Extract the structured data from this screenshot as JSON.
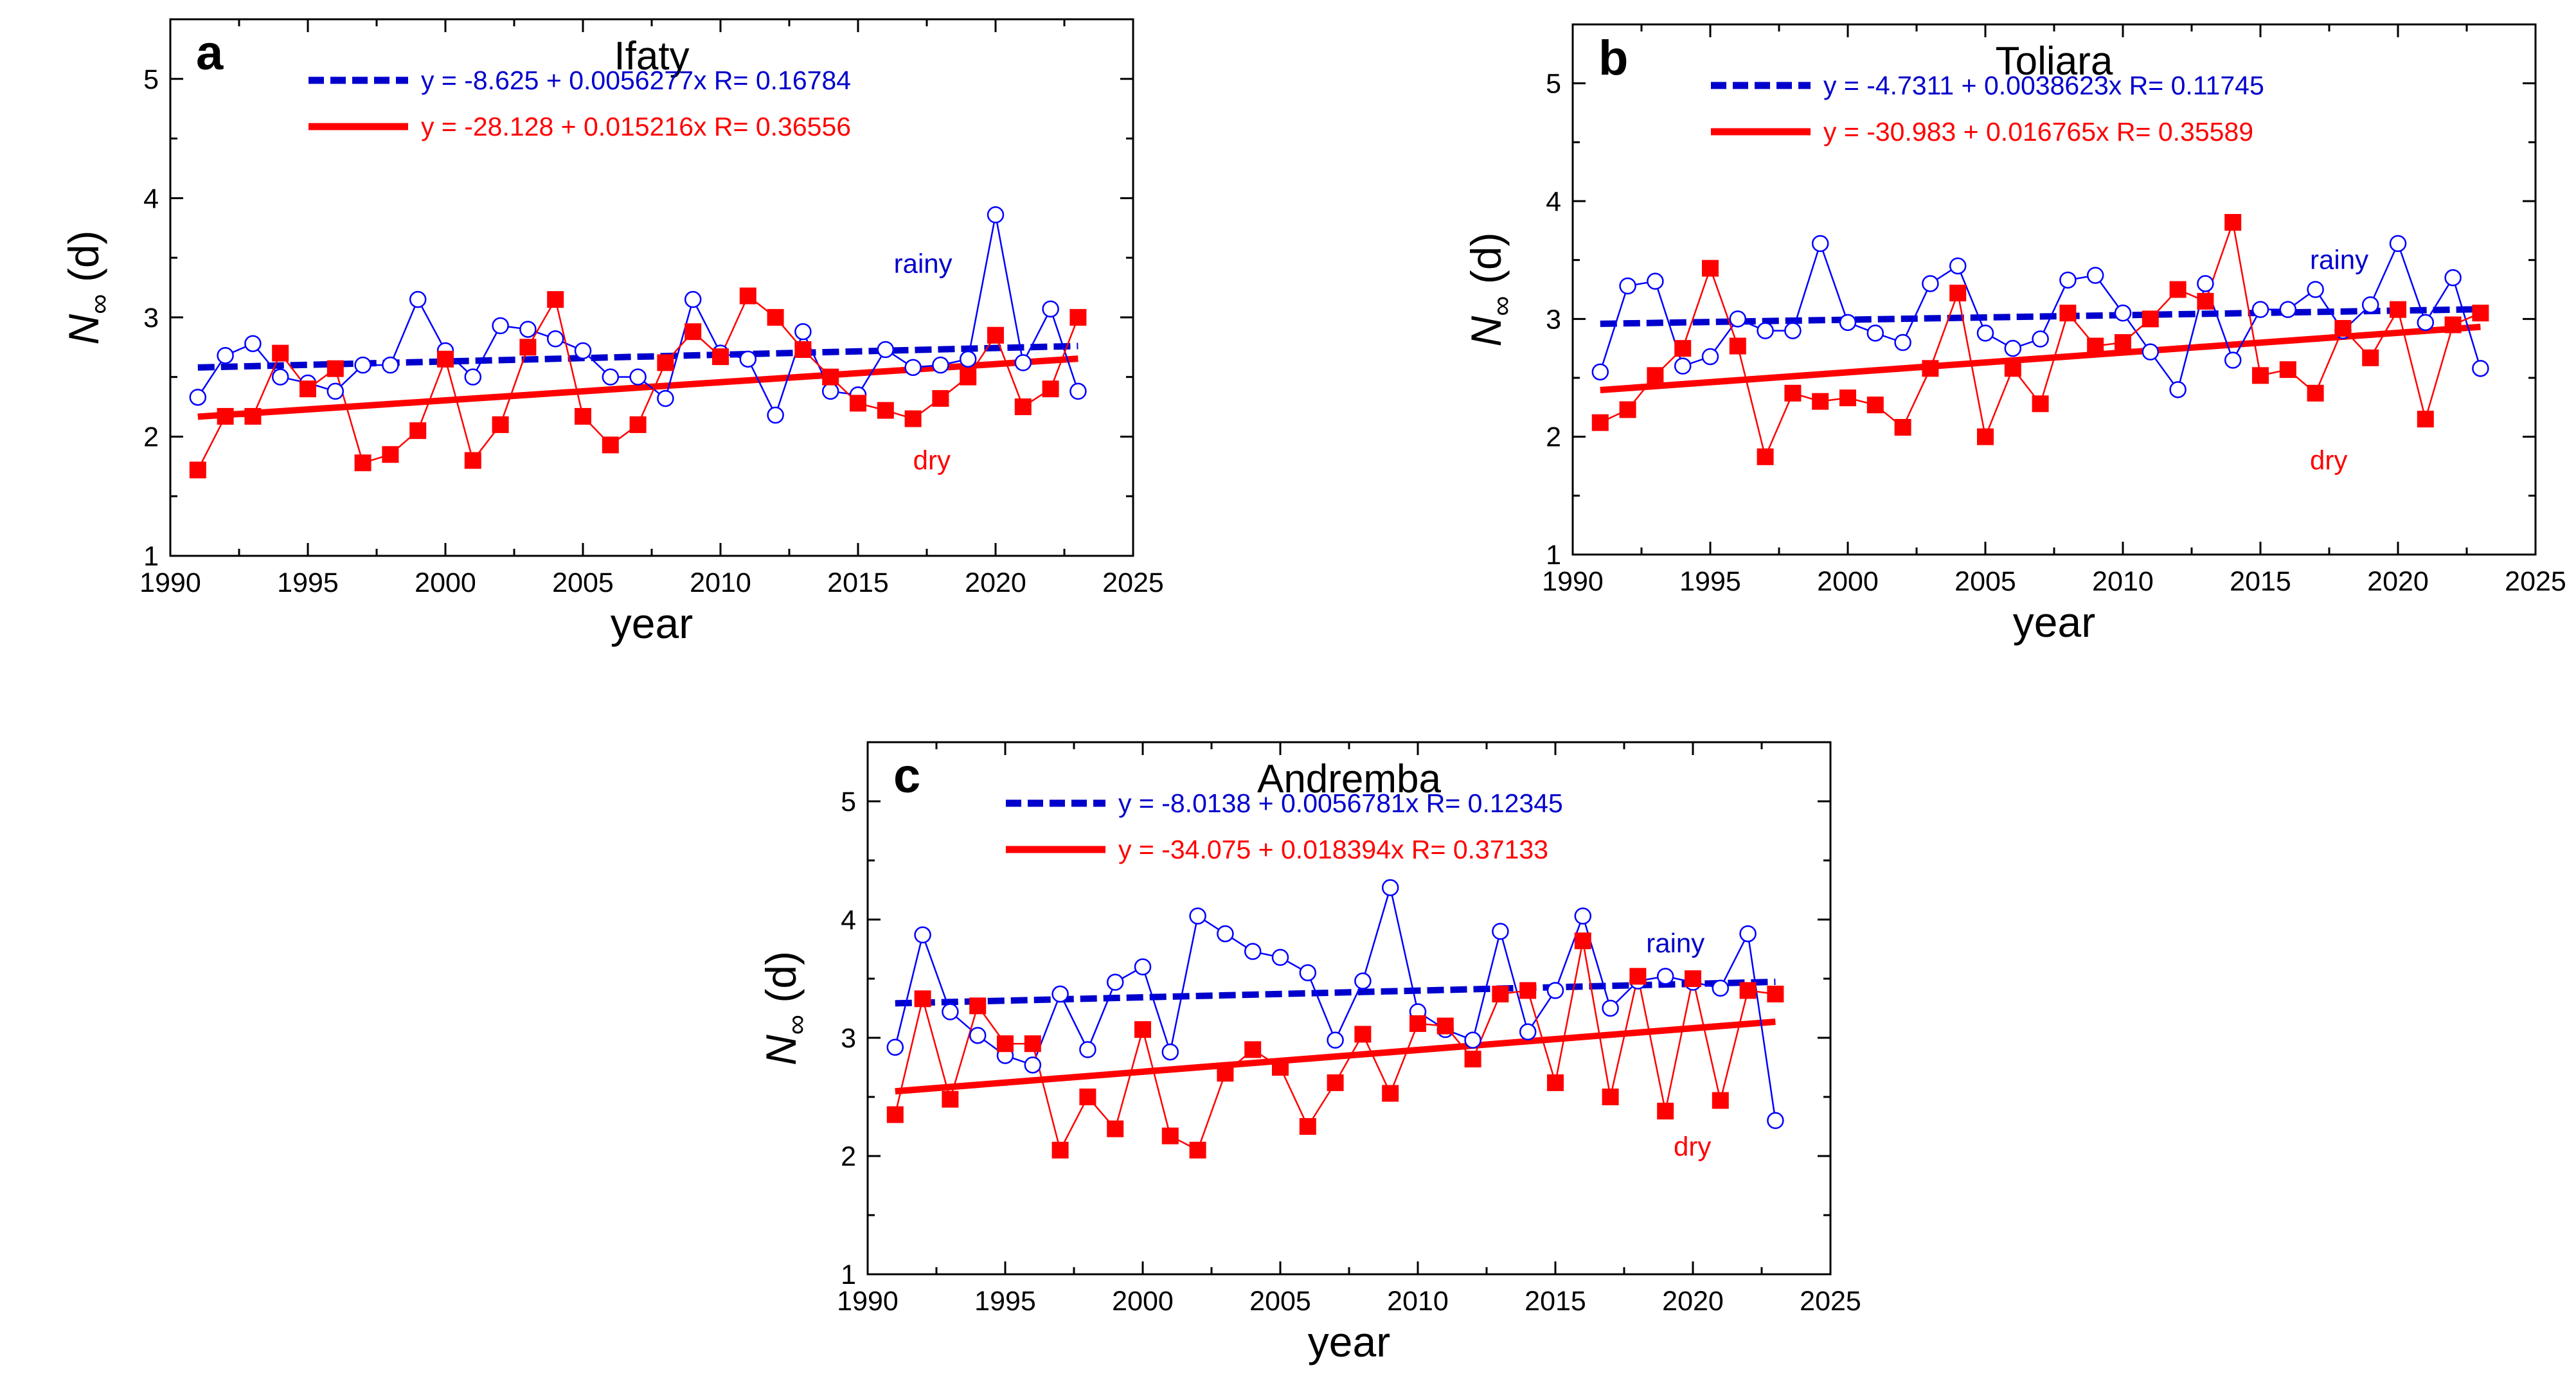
{
  "chart_data": [
    {
      "type": "line",
      "panel_label": "a",
      "title": "Ifaty",
      "xlabel": "year",
      "ylabel_main": "N",
      "ylabel_sub": "∞",
      "ylabel_unit": "(d)",
      "xlim": [
        1990,
        2025
      ],
      "ylim": [
        1,
        5.5
      ],
      "xticks": [
        1990,
        1995,
        2000,
        2005,
        2010,
        2015,
        2020,
        2025
      ],
      "yticks": [
        1,
        2,
        3,
        4,
        5
      ],
      "x": [
        1991,
        1992,
        1993,
        1994,
        1995,
        1996,
        1997,
        1998,
        1999,
        2000,
        2001,
        2002,
        2003,
        2004,
        2005,
        2006,
        2007,
        2008,
        2009,
        2010,
        2011,
        2012,
        2013,
        2014,
        2015,
        2016,
        2017,
        2018,
        2019,
        2020,
        2021,
        2022,
        2023
      ],
      "series": [
        {
          "name": "rainy",
          "color": "#0000ff",
          "marker": "open-circle",
          "values": [
            2.33,
            2.68,
            2.78,
            2.5,
            2.45,
            2.38,
            2.6,
            2.6,
            3.15,
            2.72,
            2.5,
            2.93,
            2.9,
            2.82,
            2.72,
            2.5,
            2.5,
            2.32,
            3.15,
            2.7,
            2.65,
            2.18,
            2.88,
            2.38,
            2.35,
            2.73,
            2.58,
            2.6,
            2.65,
            3.86,
            2.62,
            3.07,
            2.38
          ]
        },
        {
          "name": "dry",
          "color": "#ff0000",
          "marker": "filled-square",
          "values": [
            1.72,
            2.17,
            2.17,
            2.7,
            2.4,
            2.57,
            1.78,
            1.85,
            2.05,
            2.65,
            1.8,
            2.1,
            2.75,
            3.15,
            2.17,
            1.93,
            2.1,
            2.62,
            2.88,
            2.67,
            3.18,
            3.0,
            2.73,
            2.5,
            2.28,
            2.22,
            2.15,
            2.32,
            2.5,
            2.85,
            2.25,
            2.4,
            3.0
          ]
        }
      ],
      "fits": [
        {
          "name": "rainy fit",
          "color": "#0000cc",
          "style": "dashed",
          "intercept": -8.625,
          "slope": 0.0056277,
          "label": "y = -8.625 + 0.0056277x    R= 0.16784"
        },
        {
          "name": "dry fit",
          "color": "#ff0000",
          "style": "solid",
          "intercept": -28.128,
          "slope": 0.015216,
          "label": "y = -28.128 + 0.015216x    R= 0.36556"
        }
      ],
      "annotations": [
        {
          "text": "rainy",
          "color": "#0000cc",
          "x": 2016.3,
          "y": 3.45
        },
        {
          "text": "dry",
          "color": "#ff0000",
          "x": 2017.0,
          "y": 1.8
        }
      ]
    },
    {
      "type": "line",
      "panel_label": "b",
      "title": "Toliara",
      "xlabel": "year",
      "ylabel_main": "N",
      "ylabel_sub": "∞",
      "ylabel_unit": "(d)",
      "xlim": [
        1990,
        2025
      ],
      "ylim": [
        1,
        5.5
      ],
      "xticks": [
        1990,
        1995,
        2000,
        2005,
        2010,
        2015,
        2020,
        2025
      ],
      "yticks": [
        1,
        2,
        3,
        4,
        5
      ],
      "x": [
        1991,
        1992,
        1993,
        1994,
        1995,
        1996,
        1997,
        1998,
        1999,
        2000,
        2001,
        2002,
        2003,
        2004,
        2005,
        2006,
        2007,
        2008,
        2009,
        2010,
        2011,
        2012,
        2013,
        2014,
        2015,
        2016,
        2017,
        2018,
        2019,
        2020,
        2021,
        2022,
        2023
      ],
      "series": [
        {
          "name": "rainy",
          "color": "#0000ff",
          "marker": "open-circle",
          "values": [
            2.55,
            3.28,
            3.32,
            2.6,
            2.68,
            3.0,
            2.9,
            2.9,
            3.64,
            2.97,
            2.88,
            2.8,
            3.3,
            3.45,
            2.88,
            2.75,
            2.83,
            3.33,
            3.37,
            3.05,
            2.72,
            2.4,
            3.3,
            2.65,
            3.08,
            3.08,
            3.25,
            2.9,
            3.12,
            3.64,
            2.97,
            3.35,
            2.58
          ]
        },
        {
          "name": "dry",
          "color": "#ff0000",
          "marker": "filled-square",
          "values": [
            2.12,
            2.23,
            2.52,
            2.75,
            3.43,
            2.77,
            1.83,
            2.37,
            2.3,
            2.33,
            2.27,
            2.08,
            2.58,
            3.22,
            2.0,
            2.58,
            2.28,
            3.05,
            2.77,
            2.8,
            3.0,
            3.25,
            3.15,
            3.82,
            2.52,
            2.57,
            2.37,
            2.92,
            2.67,
            3.08,
            2.15,
            2.95,
            3.05
          ]
        }
      ],
      "fits": [
        {
          "name": "rainy fit",
          "color": "#0000cc",
          "style": "dashed",
          "intercept": -4.7311,
          "slope": 0.0038623,
          "label": "y = -4.7311 + 0.0038623x    R= 0.11745"
        },
        {
          "name": "dry fit",
          "color": "#ff0000",
          "style": "solid",
          "intercept": -30.983,
          "slope": 0.016765,
          "label": "y = -30.983 + 0.016765x    R= 0.35589"
        }
      ],
      "annotations": [
        {
          "text": "rainy",
          "color": "#0000cc",
          "x": 2016.8,
          "y": 3.5
        },
        {
          "text": "dry",
          "color": "#ff0000",
          "x": 2016.8,
          "y": 1.8
        }
      ]
    },
    {
      "type": "line",
      "panel_label": "c",
      "title": "Andremba",
      "xlabel": "year",
      "ylabel_main": "N",
      "ylabel_sub": "∞",
      "ylabel_unit": "(d)",
      "xlim": [
        1990,
        2025
      ],
      "ylim": [
        1,
        5.5
      ],
      "xticks": [
        1990,
        1995,
        2000,
        2005,
        2010,
        2015,
        2020,
        2025
      ],
      "yticks": [
        1,
        2,
        3,
        4,
        5
      ],
      "x": [
        1991,
        1992,
        1993,
        1994,
        1995,
        1996,
        1997,
        1998,
        1999,
        2000,
        2001,
        2002,
        2003,
        2004,
        2005,
        2006,
        2007,
        2008,
        2009,
        2010,
        2011,
        2012,
        2013,
        2014,
        2015,
        2016,
        2017,
        2018,
        2019,
        2020,
        2021,
        2022,
        2023
      ],
      "series": [
        {
          "name": "rainy",
          "color": "#0000ff",
          "marker": "open-circle",
          "values": [
            2.92,
            3.87,
            3.22,
            3.02,
            2.85,
            2.77,
            3.37,
            2.9,
            3.47,
            3.6,
            2.88,
            4.03,
            3.88,
            3.73,
            3.68,
            3.55,
            2.98,
            3.48,
            4.27,
            3.22,
            3.07,
            2.98,
            3.9,
            3.05,
            3.4,
            4.03,
            3.25,
            3.48,
            3.52,
            3.47,
            3.42,
            3.88,
            2.3
          ]
        },
        {
          "name": "dry",
          "color": "#ff0000",
          "marker": "filled-square",
          "values": [
            2.35,
            3.33,
            2.48,
            3.27,
            2.95,
            2.95,
            2.05,
            2.5,
            2.23,
            3.07,
            2.17,
            2.05,
            2.7,
            2.9,
            2.75,
            2.25,
            2.62,
            3.03,
            2.53,
            3.12,
            3.1,
            2.82,
            3.37,
            3.4,
            2.62,
            3.82,
            2.5,
            3.52,
            2.38,
            3.5,
            2.47,
            3.4,
            3.37
          ]
        }
      ],
      "fits": [
        {
          "name": "rainy fit",
          "color": "#0000cc",
          "style": "dashed",
          "intercept": -8.0138,
          "slope": 0.0056781,
          "label": "y = -8.0138 + 0.0056781x    R= 0.12345"
        },
        {
          "name": "dry fit",
          "color": "#ff0000",
          "style": "solid",
          "intercept": -34.075,
          "slope": 0.018394,
          "label": "y = -34.075 + 0.018394x    R= 0.37133"
        }
      ],
      "annotations": [
        {
          "text": "rainy",
          "color": "#0000cc",
          "x": 2018.3,
          "y": 3.8
        },
        {
          "text": "dry",
          "color": "#ff0000",
          "x": 2019.3,
          "y": 2.08
        }
      ]
    }
  ]
}
